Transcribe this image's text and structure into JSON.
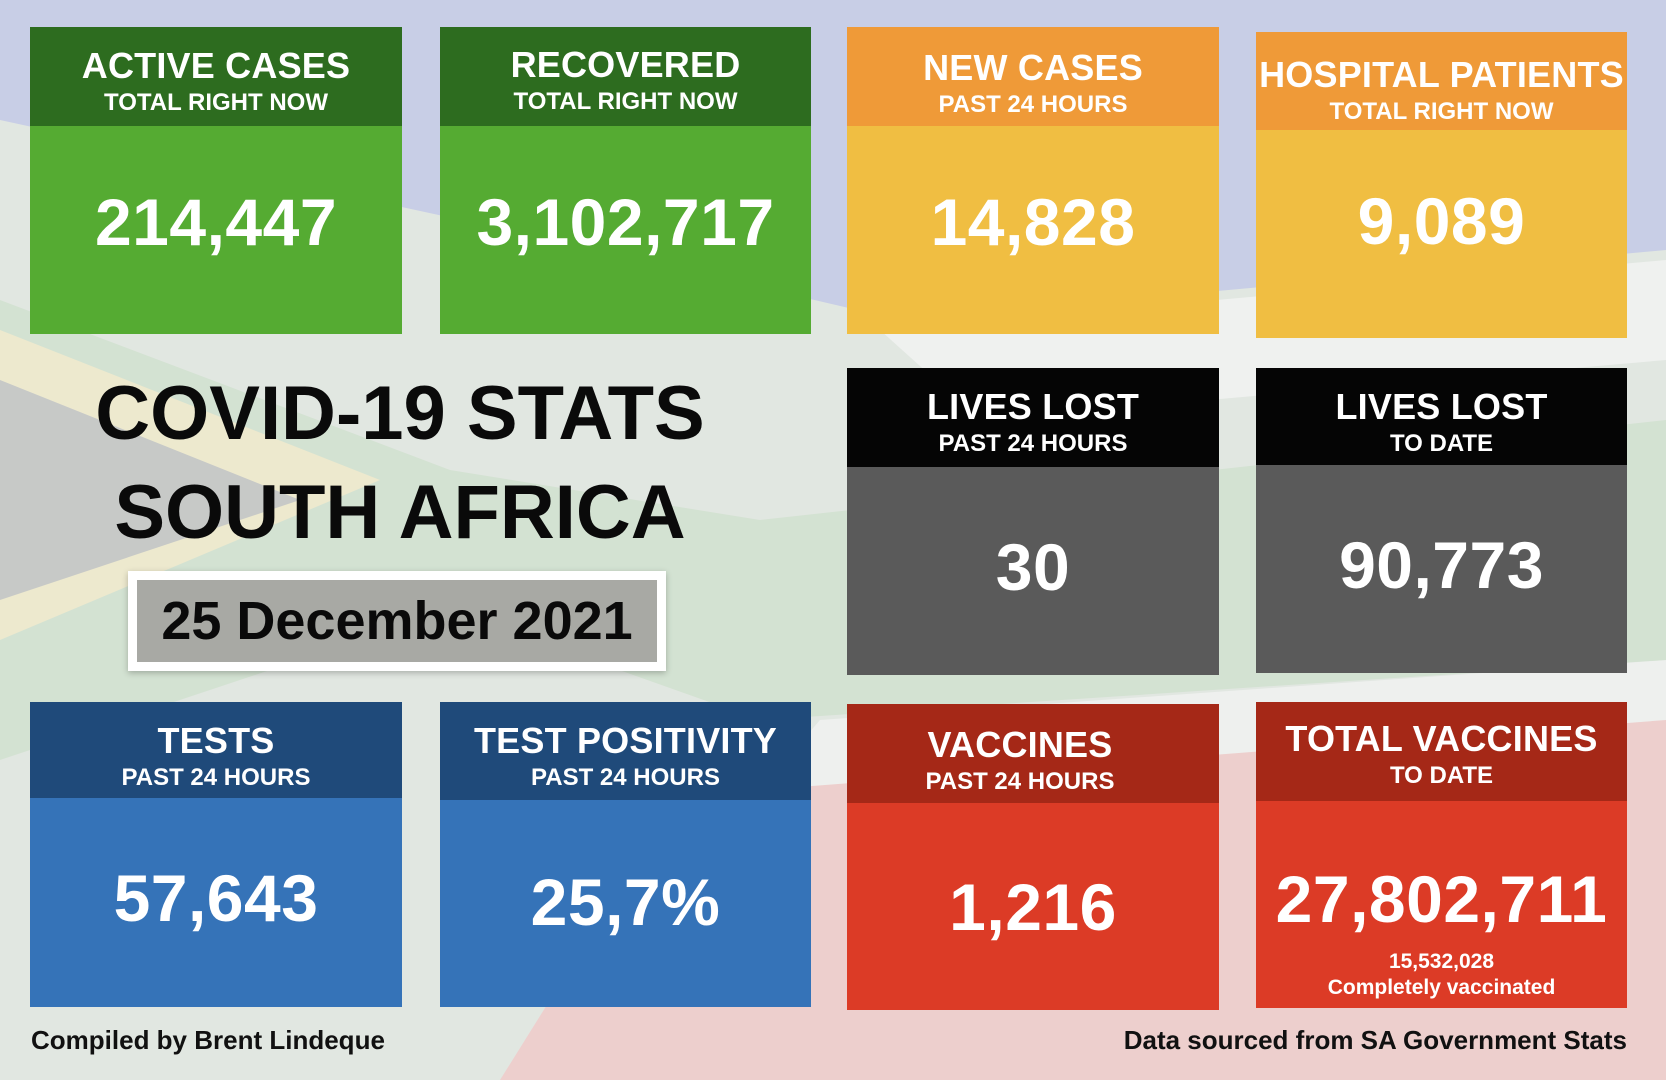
{
  "tiles": {
    "active_cases": {
      "title": "ACTIVE CASES",
      "sub": "TOTAL RIGHT NOW",
      "value": "214,447"
    },
    "recovered": {
      "title": "RECOVERED",
      "sub": "TOTAL RIGHT NOW",
      "value": "3,102,717"
    },
    "new_cases": {
      "title": "NEW CASES",
      "sub": "PAST 24 HOURS",
      "value": "14,828"
    },
    "hospital": {
      "title": "HOSPITAL PATIENTS",
      "sub": "TOTAL RIGHT NOW",
      "value": "9,089"
    },
    "lives_lost_24": {
      "title": "LIVES LOST",
      "sub": "PAST 24 HOURS",
      "value": "30"
    },
    "lives_lost_total": {
      "title": "LIVES LOST",
      "sub": "TO DATE",
      "value": "90,773"
    },
    "tests": {
      "title": "TESTS",
      "sub": "PAST 24 HOURS",
      "value": "57,643"
    },
    "positivity": {
      "title": "TEST POSITIVITY",
      "sub": "PAST 24 HOURS",
      "value": "25,7%"
    },
    "vaccines_24": {
      "title": "VACCINES",
      "sub": "PAST 24 HOURS",
      "value": "1,216"
    },
    "vaccines_total": {
      "title": "TOTAL VACCINES",
      "sub": "TO DATE",
      "value": "27,802,711",
      "note_number": "15,532,028",
      "note_text": "Completely vaccinated"
    }
  },
  "heading": {
    "line1": "COVID-19 STATS",
    "line2": "SOUTH AFRICA",
    "date": "25 December 2021"
  },
  "footer": {
    "left": "Compiled by Brent Lindeque",
    "right": "Data sourced from SA Government Stats"
  },
  "colors": {
    "green_header": "#2d6c1f",
    "green_body": "#55ab32",
    "orange_header": "#ef9a38",
    "orange_body": "#f0be42",
    "black_header": "#050505",
    "grey_body": "#5a5a5a",
    "blue_header": "#1f4a7a",
    "blue_body": "#3573b8",
    "red_header": "#a52817",
    "red_body": "#dc3b26"
  }
}
